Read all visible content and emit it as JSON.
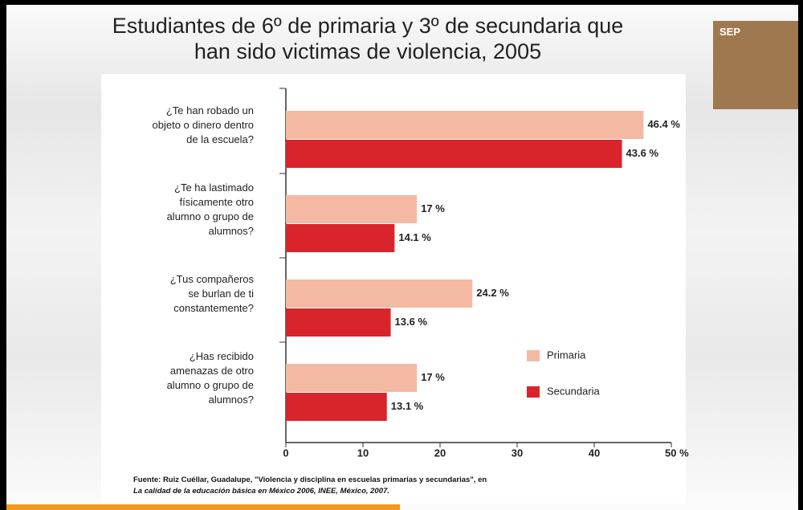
{
  "logo": "SEP",
  "chart_data": {
    "type": "hbar",
    "title": "Estudiantes de 6º de primaria y 3º de secundaria que\nhan sido victimas de violencia, 2005",
    "categories": [
      "¿Te han robado un\nobjeto o dinero dentro\nde la escuela?",
      "¿Te ha lastimado\nfísicamente otro\nalumno o grupo de\nalumnos?",
      "¿Tus compañeros\nse burlan de ti\nconstantemente?",
      "¿Has recibido\namenazas de otro\nalumno o grupo de\nalumnos?"
    ],
    "series": [
      {
        "name": "Primaria",
        "color": "#f4b9a3",
        "values": [
          46.4,
          17,
          24.2,
          17
        ],
        "value_labels": [
          "46.4 %",
          "17 %",
          "24.2 %",
          "17 %"
        ]
      },
      {
        "name": "Secundaria",
        "color": "#d9242b",
        "values": [
          43.6,
          14.1,
          13.6,
          13.1
        ],
        "value_labels": [
          "43.6 %",
          "14.1 %",
          "13.6 %",
          "13.1 %"
        ]
      }
    ],
    "xlim": [
      0,
      50
    ],
    "xticks": [
      0,
      10,
      20,
      30,
      40,
      {
        "value": 50,
        "label": "50 %"
      }
    ],
    "source": [
      "Fuente: Ruiz Cuéllar, Guadalupe, \"Violencia y disciplina en escuelas primarias y secundarias\", en",
      "La calidad de la educación básica en México 2006, INEE, México, 2007."
    ]
  }
}
